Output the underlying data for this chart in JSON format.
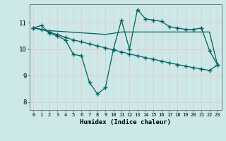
{
  "xlabel": "Humidex (Indice chaleur)",
  "ylabel": "",
  "background_color": "#cce8e8",
  "grid_color": "#e8c8c8",
  "line_color": "#006060",
  "xlim": [
    -0.5,
    23.5
  ],
  "ylim": [
    7.7,
    11.7
  ],
  "yticks": [
    8,
    9,
    10,
    11
  ],
  "xticks": [
    0,
    1,
    2,
    3,
    4,
    5,
    6,
    7,
    8,
    9,
    10,
    11,
    12,
    13,
    14,
    15,
    16,
    17,
    18,
    19,
    20,
    21,
    22,
    23
  ],
  "line1_x": [
    0,
    1,
    2,
    3,
    4,
    5,
    6,
    7,
    8,
    9,
    10,
    11,
    12,
    13,
    14,
    15,
    16,
    17,
    18,
    19,
    20,
    21,
    22,
    23
  ],
  "line1_y": [
    10.8,
    10.9,
    10.6,
    10.5,
    10.35,
    9.8,
    9.75,
    8.75,
    8.3,
    8.55,
    10.0,
    11.1,
    10.0,
    11.5,
    11.15,
    11.1,
    11.05,
    10.85,
    10.8,
    10.75,
    10.75,
    10.8,
    9.95,
    9.4
  ],
  "line2_x": [
    0,
    1,
    2,
    3,
    4,
    5,
    6,
    7,
    8,
    9,
    10,
    11,
    12,
    13,
    14,
    15,
    16,
    17,
    18,
    19,
    20,
    21,
    22,
    23
  ],
  "line2_y": [
    10.8,
    10.75,
    10.7,
    10.68,
    10.66,
    10.64,
    10.62,
    10.6,
    10.58,
    10.56,
    10.6,
    10.65,
    10.65,
    10.65,
    10.65,
    10.65,
    10.65,
    10.65,
    10.65,
    10.65,
    10.65,
    10.65,
    10.65,
    9.4
  ],
  "line3_x": [
    0,
    1,
    2,
    3,
    4,
    5,
    6,
    7,
    8,
    9,
    10,
    11,
    12,
    13,
    14,
    15,
    16,
    17,
    18,
    19,
    20,
    21,
    22,
    23
  ],
  "line3_y": [
    10.8,
    10.75,
    10.65,
    10.55,
    10.45,
    10.35,
    10.28,
    10.2,
    10.12,
    10.05,
    9.97,
    9.9,
    9.82,
    9.75,
    9.68,
    9.62,
    9.55,
    9.48,
    9.42,
    9.36,
    9.3,
    9.25,
    9.2,
    9.4
  ]
}
